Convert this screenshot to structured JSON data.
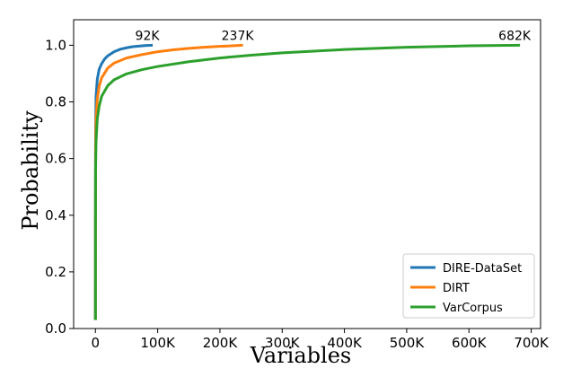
{
  "chart_data": {
    "type": "line",
    "title": "",
    "xlabel": "Variables",
    "ylabel": "Probability",
    "xlim": [
      -35000,
      715000
    ],
    "ylim": [
      0,
      1.09
    ],
    "x_ticks": [
      0,
      100000,
      200000,
      300000,
      400000,
      500000,
      600000,
      700000
    ],
    "x_tick_labels": [
      "0",
      "100K",
      "200K",
      "300K",
      "400K",
      "500K",
      "600K",
      "700K"
    ],
    "y_ticks": [
      0.0,
      0.2,
      0.4,
      0.6,
      0.8,
      1.0
    ],
    "y_tick_labels": [
      "0.0",
      "0.2",
      "0.4",
      "0.6",
      "0.8",
      "1.0"
    ],
    "grid": false,
    "legend_position": "bottom-right",
    "series": [
      {
        "name": "DIRE-DataSet",
        "color": "#1f77b4",
        "end_label": "92K",
        "x": [
          0,
          50,
          300,
          1000,
          3000,
          6000,
          10000,
          15000,
          20000,
          30000,
          40000,
          50000,
          60000,
          70000,
          80000,
          92000
        ],
        "y": [
          0.03,
          0.4,
          0.7,
          0.82,
          0.88,
          0.915,
          0.935,
          0.952,
          0.963,
          0.977,
          0.986,
          0.991,
          0.995,
          0.997,
          0.999,
          1.0
        ]
      },
      {
        "name": "DIRT",
        "color": "#ff7f0e",
        "end_label": "237K",
        "x": [
          0,
          50,
          300,
          1000,
          3000,
          6000,
          10000,
          20000,
          30000,
          50000,
          75000,
          100000,
          125000,
          150000,
          175000,
          200000,
          220000,
          237000
        ],
        "y": [
          0.03,
          0.38,
          0.64,
          0.74,
          0.81,
          0.855,
          0.885,
          0.92,
          0.937,
          0.955,
          0.967,
          0.977,
          0.984,
          0.989,
          0.993,
          0.996,
          0.998,
          1.0
        ]
      },
      {
        "name": "VarCorpus",
        "color": "#2ca02c",
        "end_label": "682K",
        "x": [
          0,
          50,
          300,
          1000,
          3000,
          6000,
          10000,
          20000,
          30000,
          50000,
          75000,
          100000,
          150000,
          200000,
          250000,
          300000,
          400000,
          500000,
          600000,
          682000
        ],
        "y": [
          0.03,
          0.3,
          0.56,
          0.66,
          0.74,
          0.785,
          0.82,
          0.858,
          0.878,
          0.899,
          0.914,
          0.925,
          0.942,
          0.955,
          0.965,
          0.973,
          0.985,
          0.993,
          0.998,
          1.0
        ]
      }
    ]
  }
}
